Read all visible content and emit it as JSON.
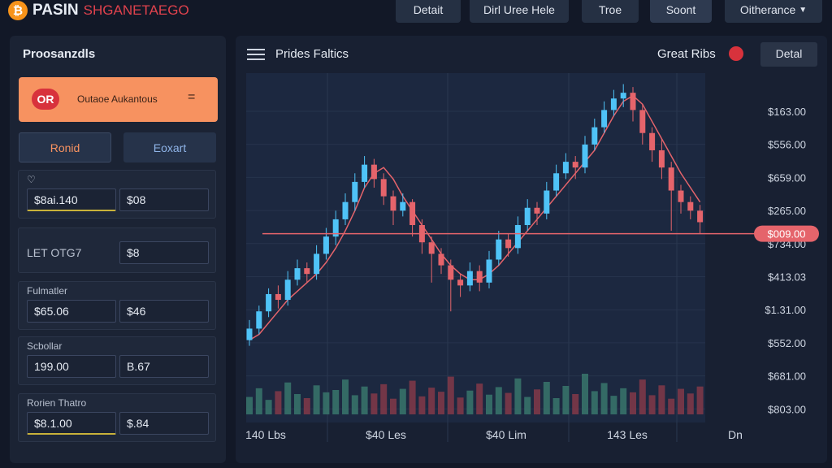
{
  "brand": {
    "name": "PASIN",
    "tagline": "SHGANETAEGO"
  },
  "nav": [
    "Detait",
    "Dirl Uree Hele",
    "Troe",
    "Soont",
    "Oitherance"
  ],
  "sidebar": {
    "title": "Proosanzdls",
    "promo": {
      "badge": "OR",
      "text": "Outaoe Aukantous"
    },
    "tabs": [
      "Ronid",
      "Eoxart"
    ],
    "sections": [
      {
        "label": "♡",
        "fields": [
          "$8ai.140",
          "$08"
        ]
      },
      {
        "label": "LET OTG7",
        "fields": [
          "$8"
        ]
      },
      {
        "label": "Fulmatler",
        "fields": [
          "$65.06",
          "$46"
        ]
      },
      {
        "label": "Scbollar",
        "fields": [
          "199.00",
          "B.67"
        ]
      },
      {
        "label": "Rorien Thatro",
        "fields": [
          "$8.1.00",
          "$.84"
        ]
      }
    ]
  },
  "panel": {
    "title": "Prides Faltics",
    "status": "Great Ribs",
    "button": "Detal"
  },
  "price_chart": {
    "type": "candlestick",
    "ylim": [
      0,
      100
    ],
    "y_labels": [
      "$163.00",
      "$556.00",
      "$659.00",
      "$265.00",
      "$734.00",
      "$413.03",
      "$1.31.00",
      "$552.00",
      "$681.00",
      "$803.00"
    ],
    "x_labels": [
      "140 Lbs",
      "$40 Les",
      "$40 Lim",
      "143 Les",
      "Dn"
    ],
    "current_level": 47,
    "current_label": "$009.00",
    "up_color": "#4fc3f7",
    "down_color": "#e5646b",
    "ohlc": [
      [
        10,
        17,
        8,
        14
      ],
      [
        14,
        22,
        12,
        20
      ],
      [
        20,
        28,
        18,
        26
      ],
      [
        26,
        29,
        21,
        24
      ],
      [
        24,
        34,
        22,
        31
      ],
      [
        31,
        38,
        29,
        35
      ],
      [
        35,
        37,
        30,
        33
      ],
      [
        33,
        43,
        31,
        40
      ],
      [
        40,
        49,
        38,
        46
      ],
      [
        46,
        55,
        43,
        52
      ],
      [
        52,
        61,
        50,
        58
      ],
      [
        58,
        68,
        55,
        65
      ],
      [
        65,
        74,
        63,
        71
      ],
      [
        71,
        73,
        63,
        66
      ],
      [
        66,
        68,
        57,
        60
      ],
      [
        60,
        62,
        50,
        55
      ],
      [
        55,
        61,
        53,
        58
      ],
      [
        58,
        59,
        46,
        50
      ],
      [
        50,
        52,
        40,
        44
      ],
      [
        44,
        46,
        30,
        40
      ],
      [
        40,
        42,
        33,
        36
      ],
      [
        36,
        38,
        20,
        31
      ],
      [
        31,
        33,
        25,
        29
      ],
      [
        29,
        37,
        27,
        34
      ],
      [
        34,
        36,
        27,
        30
      ],
      [
        30,
        41,
        28,
        38
      ],
      [
        38,
        48,
        36,
        45
      ],
      [
        45,
        47,
        39,
        42
      ],
      [
        42,
        53,
        40,
        50
      ],
      [
        50,
        59,
        48,
        56
      ],
      [
        56,
        58,
        50,
        54
      ],
      [
        54,
        65,
        52,
        62
      ],
      [
        62,
        71,
        60,
        68
      ],
      [
        68,
        75,
        66,
        72
      ],
      [
        72,
        74,
        66,
        70
      ],
      [
        70,
        81,
        68,
        78
      ],
      [
        78,
        87,
        76,
        84
      ],
      [
        84,
        93,
        82,
        90
      ],
      [
        90,
        97,
        88,
        94
      ],
      [
        94,
        99,
        91,
        96
      ],
      [
        96,
        98,
        86,
        90
      ],
      [
        90,
        92,
        78,
        82
      ],
      [
        82,
        84,
        72,
        76
      ],
      [
        76,
        80,
        66,
        70
      ],
      [
        70,
        72,
        48,
        62
      ],
      [
        62,
        64,
        54,
        58
      ],
      [
        58,
        60,
        52,
        55
      ],
      [
        55,
        57,
        47,
        51
      ]
    ],
    "ma": [
      10,
      12,
      16,
      20,
      24,
      27,
      30,
      33,
      37,
      42,
      48,
      55,
      63,
      68,
      70,
      66,
      60,
      55,
      50,
      45,
      40,
      36,
      33,
      31,
      31,
      33,
      36,
      40,
      44,
      48,
      52,
      56,
      60,
      64,
      68,
      72,
      76,
      82,
      88,
      93,
      95,
      92,
      86,
      80,
      74,
      68,
      63,
      58
    ],
    "volume": [
      30,
      45,
      25,
      40,
      55,
      35,
      28,
      50,
      38,
      42,
      60,
      33,
      48,
      36,
      52,
      27,
      44,
      58,
      31,
      46,
      39,
      65,
      29,
      41,
      53,
      34,
      47,
      37,
      62,
      30,
      43,
      56,
      28,
      49,
      35,
      70,
      40,
      54,
      32,
      45,
      38,
      60,
      33,
      50,
      27,
      44,
      36,
      48
    ]
  }
}
